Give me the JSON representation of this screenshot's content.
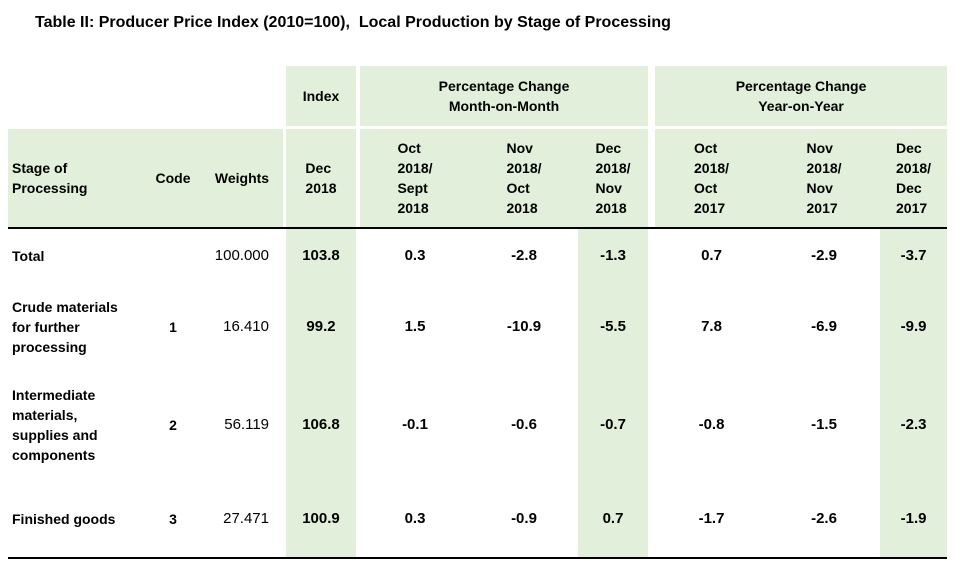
{
  "title": "Table II: Producer Price Index (2010=100),  Local Production by Stage of Processing",
  "table": {
    "group_headers": {
      "index": "Index",
      "mom": "Percentage Change\nMonth-on-Month",
      "yoy": "Percentage Change\nYear-on-Year"
    },
    "column_headers": {
      "stage": "Stage of\nProcessing",
      "code": "Code",
      "weights": "Weights",
      "index_dec": "Dec\n2018",
      "mom_oct": "Oct\n2018/\nSept\n2018",
      "mom_nov": "Nov\n2018/\nOct\n2018",
      "mom_dec": "Dec\n2018/\nNov\n2018",
      "yoy_oct": "Oct\n2018/\nOct\n2017",
      "yoy_nov": "Nov\n2018/\nNov\n2017",
      "yoy_dec": "Dec\n2018/\nDec\n2017"
    },
    "rows": [
      {
        "stage": "Total",
        "code": "",
        "weights": "100.000",
        "index": "103.8",
        "mom_oct": "0.3",
        "mom_nov": "-2.8",
        "mom_dec": "-1.3",
        "yoy_oct": "0.7",
        "yoy_nov": "-2.9",
        "yoy_dec": "-3.7"
      },
      {
        "stage": "Crude materials\nfor further\nprocessing",
        "code": "1",
        "weights": "16.410",
        "index": "99.2",
        "mom_oct": "1.5",
        "mom_nov": "-10.9",
        "mom_dec": "-5.5",
        "yoy_oct": "7.8",
        "yoy_nov": "-6.9",
        "yoy_dec": "-9.9"
      },
      {
        "stage": "Intermediate\nmaterials,\nsupplies and\ncomponents",
        "code": "2",
        "weights": "56.119",
        "index": "106.8",
        "mom_oct": "-0.1",
        "mom_nov": "-0.6",
        "mom_dec": "-0.7",
        "yoy_oct": "-0.8",
        "yoy_nov": "-1.5",
        "yoy_dec": "-2.3"
      },
      {
        "stage": "Finished goods",
        "code": "3",
        "weights": "27.471",
        "index": "100.9",
        "mom_oct": "0.3",
        "mom_nov": "-0.9",
        "mom_dec": "0.7",
        "yoy_oct": "-1.7",
        "yoy_nov": "-2.6",
        "yoy_dec": "-1.9"
      }
    ],
    "colors": {
      "highlight_green": "#E2EFDA",
      "rule_black": "#000000"
    }
  }
}
